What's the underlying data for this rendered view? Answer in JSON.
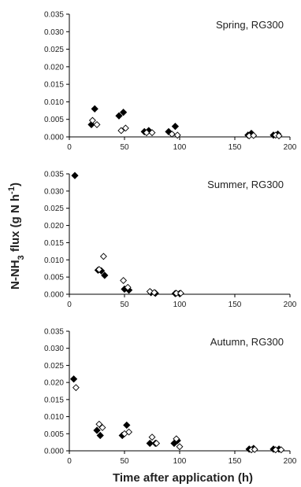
{
  "figure": {
    "xlabel": "Time after application (h)",
    "ylabel_parts": [
      "N-NH",
      "3",
      " flux (g N h",
      "-1",
      ")"
    ]
  },
  "chart_data": [
    {
      "type": "scatter",
      "label": "Spring, RG300",
      "xlim": [
        0,
        200
      ],
      "ylim": [
        0,
        0.035
      ],
      "xticks": [
        "0",
        "50",
        "100",
        "150",
        "200"
      ],
      "yticks": [
        "0.000",
        "0.005",
        "0.010",
        "0.015",
        "0.020",
        "0.025",
        "0.030",
        "0.035"
      ],
      "series": [
        {
          "marker": "filled-diamond",
          "points": [
            [
              20,
              0.0035
            ],
            [
              23,
              0.008
            ],
            [
              45,
              0.006
            ],
            [
              49,
              0.007
            ],
            [
              68,
              0.0015
            ],
            [
              72,
              0.0018
            ],
            [
              90,
              0.0015
            ],
            [
              96,
              0.003
            ],
            [
              162,
              0.0005
            ],
            [
              165,
              0.001
            ],
            [
              185,
              0.0005
            ],
            [
              189,
              0.0008
            ]
          ]
        },
        {
          "marker": "open-diamond",
          "points": [
            [
              21,
              0.0047
            ],
            [
              25,
              0.0035
            ],
            [
              47,
              0.0018
            ],
            [
              51,
              0.0025
            ],
            [
              70,
              0.0012
            ],
            [
              75,
              0.0012
            ],
            [
              93,
              0.0008
            ],
            [
              98,
              0.0005
            ],
            [
              163,
              0.0003
            ],
            [
              167,
              0.0004
            ],
            [
              187,
              0.0005
            ],
            [
              190,
              0.0003
            ]
          ]
        }
      ]
    },
    {
      "type": "scatter",
      "label": "Summer, RG300",
      "xlim": [
        0,
        200
      ],
      "ylim": [
        0,
        0.035
      ],
      "xticks": [
        "0",
        "50",
        "100",
        "150",
        "200"
      ],
      "yticks": [
        "0.000",
        "0.005",
        "0.010",
        "0.015",
        "0.020",
        "0.025",
        "0.030",
        "0.035"
      ],
      "series": [
        {
          "marker": "filled-diamond",
          "points": [
            [
              5,
              0.0345
            ],
            [
              26,
              0.007
            ],
            [
              29,
              0.0068
            ],
            [
              32,
              0.0055
            ],
            [
              50,
              0.0015
            ],
            [
              54,
              0.0012
            ],
            [
              74,
              0.0005
            ],
            [
              78,
              0.0003
            ],
            [
              96,
              0.0002
            ],
            [
              100,
              0.0002
            ]
          ]
        },
        {
          "marker": "open-diamond",
          "points": [
            [
              27,
              0.0072
            ],
            [
              31,
              0.011
            ],
            [
              49,
              0.004
            ],
            [
              53,
              0.002
            ],
            [
              73,
              0.0008
            ],
            [
              77,
              0.0005
            ],
            [
              97,
              0.0003
            ],
            [
              101,
              0.0003
            ]
          ]
        }
      ]
    },
    {
      "type": "scatter",
      "label": "Autumn, RG300",
      "xlim": [
        0,
        200
      ],
      "ylim": [
        0,
        0.035
      ],
      "xticks": [
        "0",
        "50",
        "100",
        "150",
        "200"
      ],
      "yticks": [
        "0.000",
        "0.005",
        "0.010",
        "0.015",
        "0.020",
        "0.025",
        "0.030",
        "0.035"
      ],
      "series": [
        {
          "marker": "filled-diamond",
          "points": [
            [
              4,
              0.021
            ],
            [
              25,
              0.006
            ],
            [
              28,
              0.0045
            ],
            [
              48,
              0.0045
            ],
            [
              52,
              0.0075
            ],
            [
              73,
              0.0022
            ],
            [
              78,
              0.0022
            ],
            [
              95,
              0.0022
            ],
            [
              98,
              0.003
            ],
            [
              163,
              0.0005
            ],
            [
              167,
              0.0007
            ],
            [
              185,
              0.0005
            ],
            [
              190,
              0.0005
            ]
          ]
        },
        {
          "marker": "open-diamond",
          "points": [
            [
              6,
              0.0185
            ],
            [
              27,
              0.0078
            ],
            [
              30,
              0.0068
            ],
            [
              50,
              0.005
            ],
            [
              54,
              0.0055
            ],
            [
              75,
              0.004
            ],
            [
              79,
              0.0022
            ],
            [
              97,
              0.0035
            ],
            [
              100,
              0.0012
            ],
            [
              165,
              0.0003
            ],
            [
              168,
              0.0004
            ],
            [
              187,
              0.0003
            ],
            [
              192,
              0.0003
            ]
          ]
        }
      ]
    }
  ]
}
